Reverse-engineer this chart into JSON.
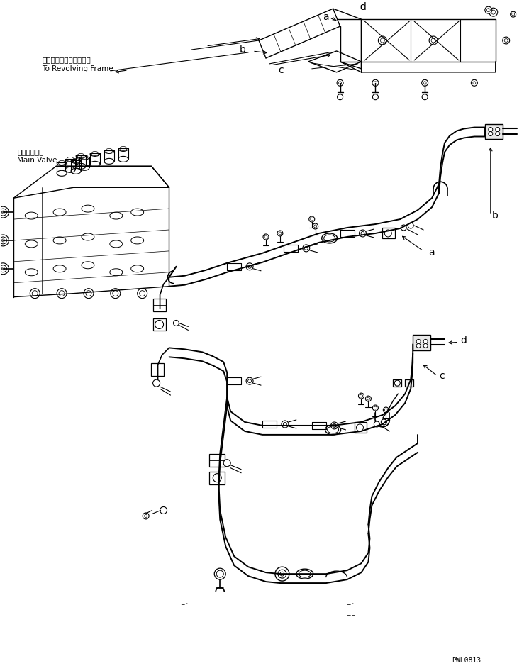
{
  "bg_color": "#ffffff",
  "line_color": "#000000",
  "fig_width": 7.46,
  "fig_height": 9.46,
  "dpi": 100,
  "watermark": "PWL0813",
  "label_top_japanese": "レボルビングフレームへ",
  "label_top_english": "To Revolving Frame",
  "label_main_valve_jp": "メインバルブ",
  "label_main_valve_en": "Main Valve"
}
